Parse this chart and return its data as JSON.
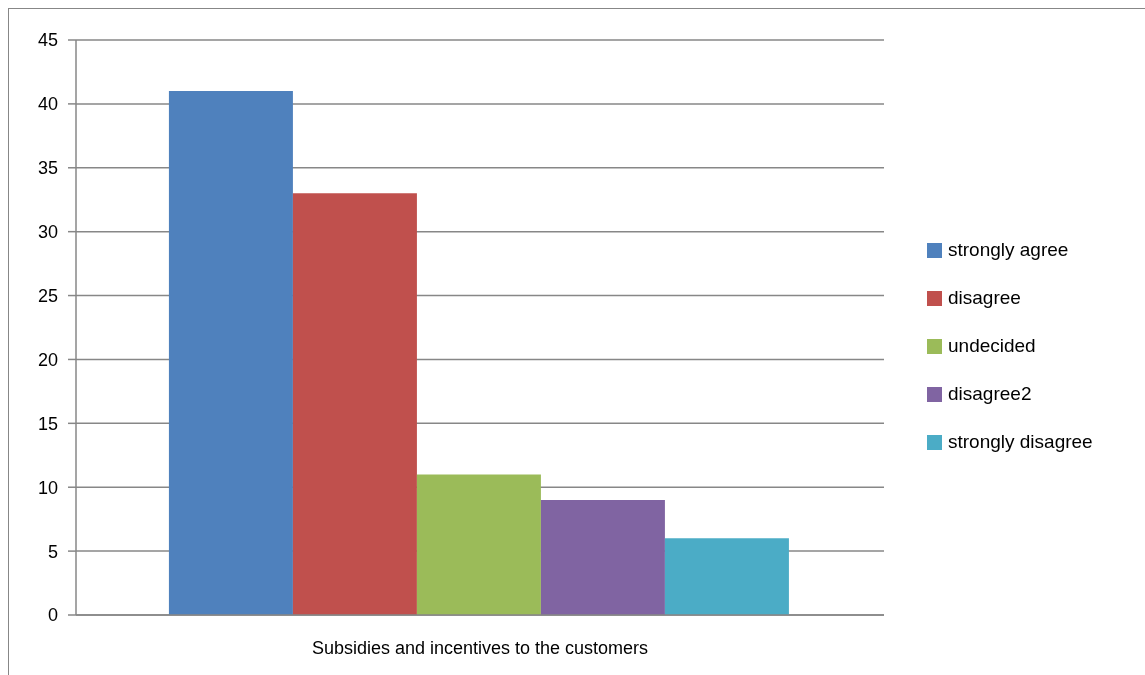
{
  "chart_data": {
    "type": "bar",
    "categories": [
      "Subsidies and incentives to the customers"
    ],
    "series": [
      {
        "name": "strongly agree",
        "color": "#4f81bd",
        "values": [
          41
        ]
      },
      {
        "name": "disagree",
        "color": "#c0504d",
        "values": [
          33
        ]
      },
      {
        "name": "undecided",
        "color": "#9bbb59",
        "values": [
          11
        ]
      },
      {
        "name": "disagree2",
        "color": "#8064a2",
        "values": [
          9
        ]
      },
      {
        "name": "strongly disagree",
        "color": "#4bacc6",
        "values": [
          6
        ]
      }
    ],
    "ylim": [
      0,
      45
    ],
    "yticks": [
      0,
      5,
      10,
      15,
      20,
      25,
      30,
      35,
      40,
      45
    ],
    "grid": "y",
    "legend": "right"
  }
}
